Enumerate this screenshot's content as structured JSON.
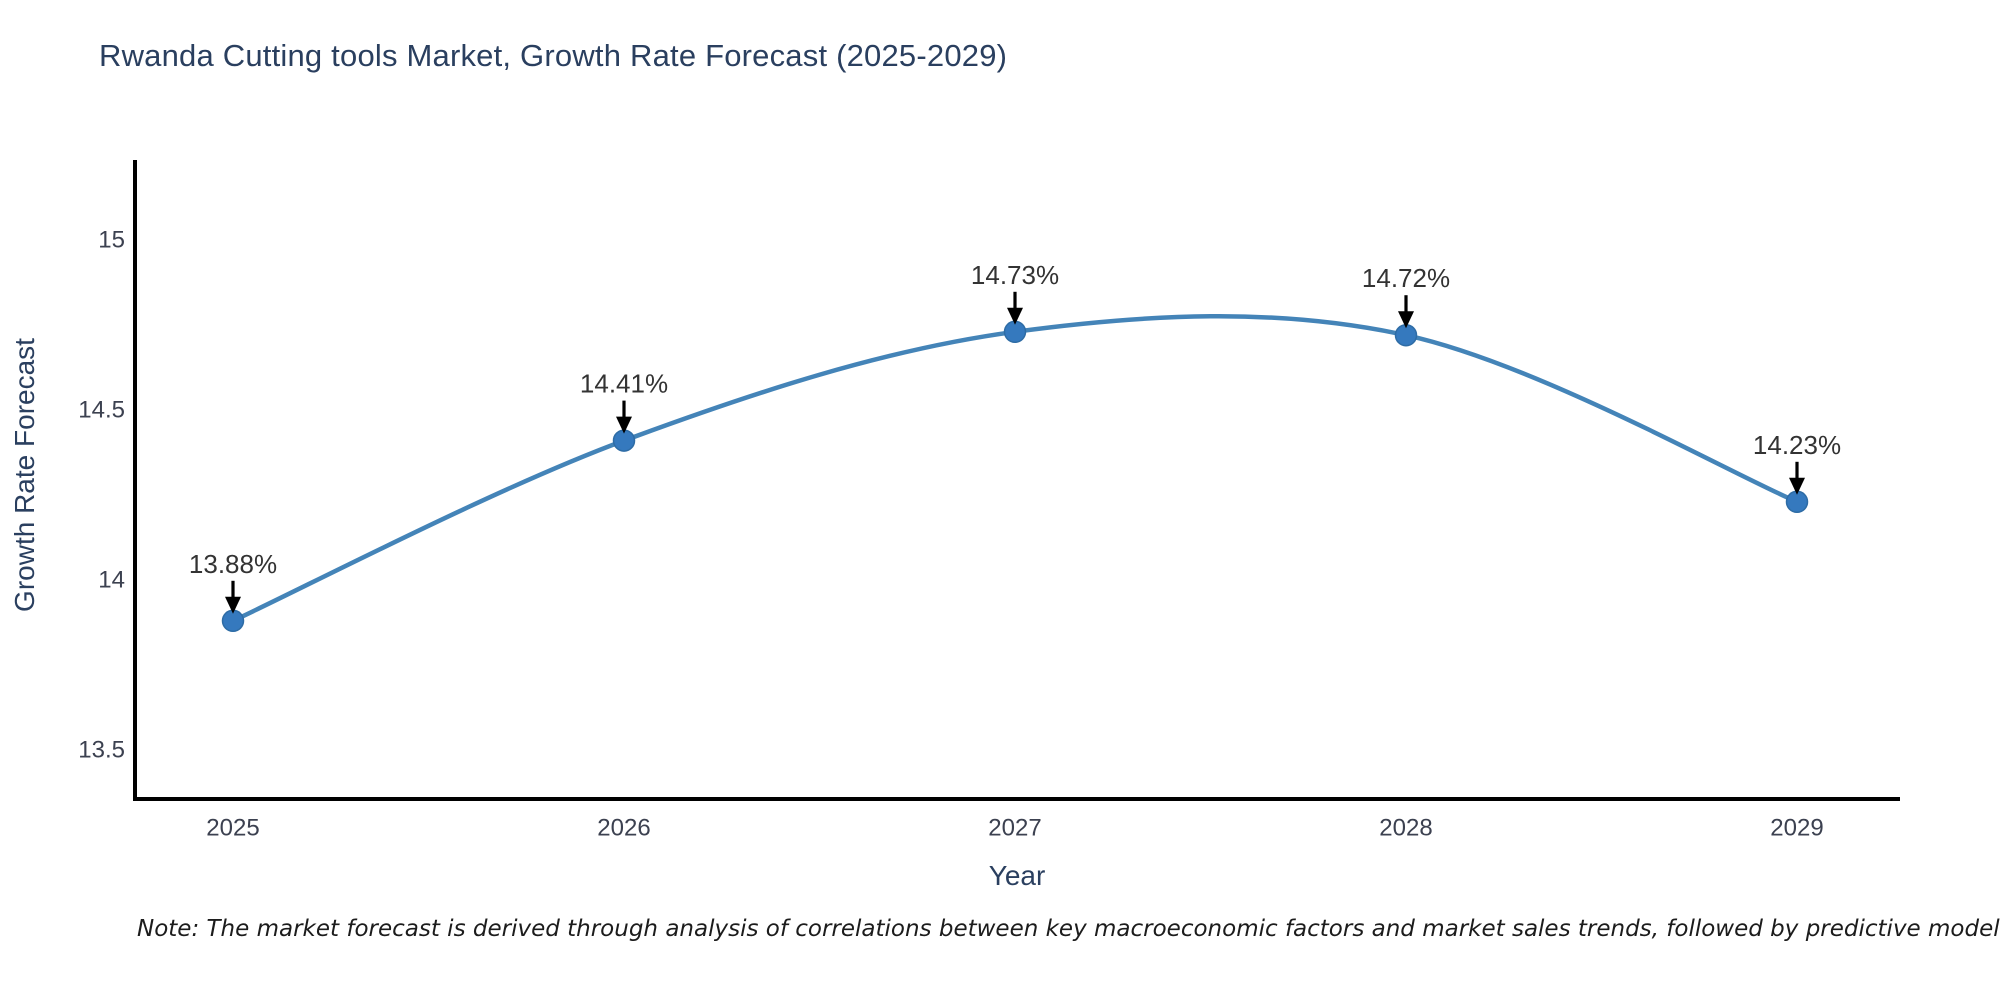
{
  "header": {
    "title": "Rwanda Cutting tools Market, Growth Rate Forecast (2025-2029)"
  },
  "footnote": {
    "text": "Note: The market forecast is derived through analysis of correlations between key macroeconomic factors and market sales trends, followed by predictive modeling to project future sales"
  },
  "chart_data": {
    "type": "line",
    "title": "Rwanda Cutting tools Market, Growth Rate Forecast (2025-2029)",
    "xlabel": "Year",
    "ylabel": "Growth Rate Forecast",
    "x": [
      2025,
      2026,
      2027,
      2028,
      2029
    ],
    "values": [
      13.88,
      14.41,
      14.73,
      14.72,
      14.23
    ],
    "point_labels": [
      "13.88%",
      "14.41%",
      "14.73%",
      "14.72%",
      "14.23%"
    ],
    "x_tick_labels": [
      "2025",
      "2026",
      "2027",
      "2028",
      "2029"
    ],
    "y_ticks": [
      13.5,
      14,
      14.5,
      15
    ],
    "y_tick_labels": [
      "13.5",
      "14",
      "14.5",
      "15"
    ],
    "ylim": [
      13.36,
      15.24
    ],
    "line_shape": "spline",
    "grid": false,
    "legend": null,
    "colors": {
      "line": "#4484b8",
      "marker": "#3579be",
      "marker_edge": "#2e6ca5",
      "axis": "#000000",
      "annotation_text": "#333333",
      "annotation_arrow": "#000000",
      "tick_text": "#3c4150",
      "title_text": "#2a3f5f"
    }
  }
}
